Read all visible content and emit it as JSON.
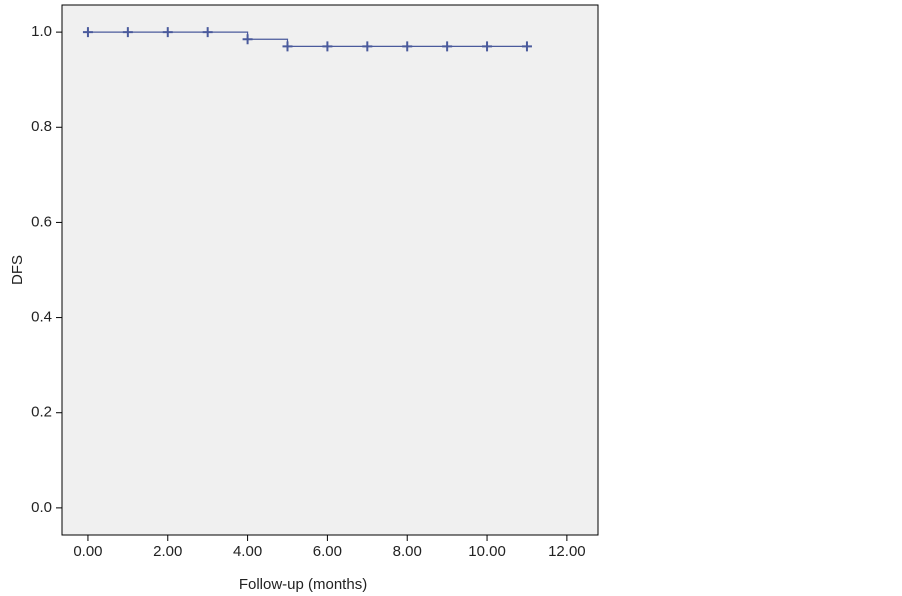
{
  "chart_data": {
    "type": "line",
    "step": "post",
    "x_label": "Follow-up (months)",
    "y_label": "DFS",
    "series": [
      {
        "color": "#4a5a9c",
        "x": [
          0,
          1,
          2,
          3,
          4,
          5,
          6,
          7,
          8,
          9,
          10,
          11
        ],
        "values": [
          1,
          1,
          1,
          1,
          0.985,
          0.97,
          0.97,
          0.97,
          0.97,
          0.97,
          0.97,
          0.97
        ]
      }
    ],
    "xlim": [
      -0.65,
      12.78
    ],
    "ylim": [
      -0.057,
      1.057
    ],
    "xticks": [
      {
        "value": 0,
        "label": "0.00"
      },
      {
        "value": 2,
        "label": "2.00"
      },
      {
        "value": 4,
        "label": "4.00"
      },
      {
        "value": 6,
        "label": "6.00"
      },
      {
        "value": 8,
        "label": "8.00"
      },
      {
        "value": 10,
        "label": "10.00"
      },
      {
        "value": 12,
        "label": "12.00"
      }
    ],
    "yticks": [
      {
        "value": 0,
        "label": "0.0"
      },
      {
        "value": 0.2,
        "label": "0.2"
      },
      {
        "value": 0.4,
        "label": "0.4"
      },
      {
        "value": 0.6,
        "label": "0.6"
      },
      {
        "value": 0.8,
        "label": "0.8"
      },
      {
        "value": 1,
        "label": "1.0"
      }
    ],
    "censor_marks": true
  }
}
